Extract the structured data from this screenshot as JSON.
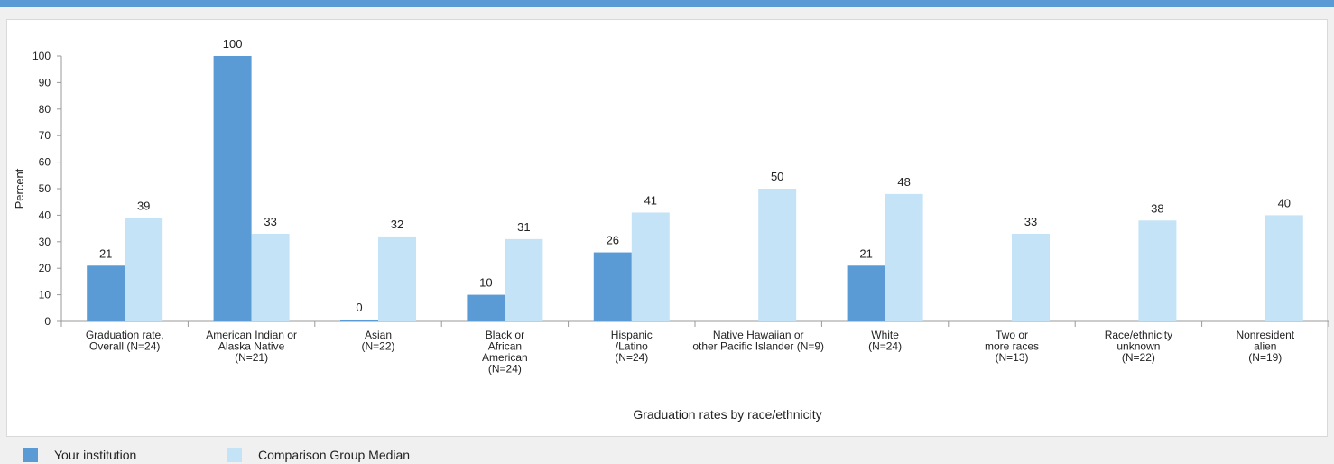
{
  "colors": {
    "institution": "#5b9bd5",
    "median": "#c5e3f6",
    "accent": "#5b9bd5"
  },
  "legend": {
    "institution_label": "Your institution",
    "median_label": "Comparison Group Median"
  },
  "chart_data": {
    "type": "bar",
    "xlabel": "Graduation rates by race/ethnicity",
    "ylabel": "Percent",
    "ylim": [
      0,
      100
    ],
    "yticks": [
      0,
      10,
      20,
      30,
      40,
      50,
      60,
      70,
      80,
      90,
      100
    ],
    "grid": false,
    "legend_position": "bottom-left",
    "categories": [
      [
        "Graduation rate,",
        "Overall (N=24)"
      ],
      [
        "American Indian or",
        "Alaska Native",
        "(N=21)"
      ],
      [
        "Asian",
        "(N=22)"
      ],
      [
        "Black or",
        "African",
        "American",
        "(N=24)"
      ],
      [
        "Hispanic",
        "/Latino",
        "(N=24)"
      ],
      [
        "Native Hawaiian or",
        "other Pacific Islander (N=9)"
      ],
      [
        "White",
        "(N=24)"
      ],
      [
        "Two or",
        "more races",
        "(N=13)"
      ],
      [
        "Race/ethnicity",
        "unknown",
        "(N=22)"
      ],
      [
        "Nonresident",
        "alien",
        "(N=19)"
      ]
    ],
    "series": [
      {
        "name": "Your institution",
        "values": [
          21,
          100,
          0,
          10,
          26,
          null,
          21,
          null,
          null,
          null
        ]
      },
      {
        "name": "Comparison Group Median",
        "values": [
          39,
          33,
          32,
          31,
          41,
          50,
          48,
          33,
          38,
          40
        ]
      }
    ]
  }
}
